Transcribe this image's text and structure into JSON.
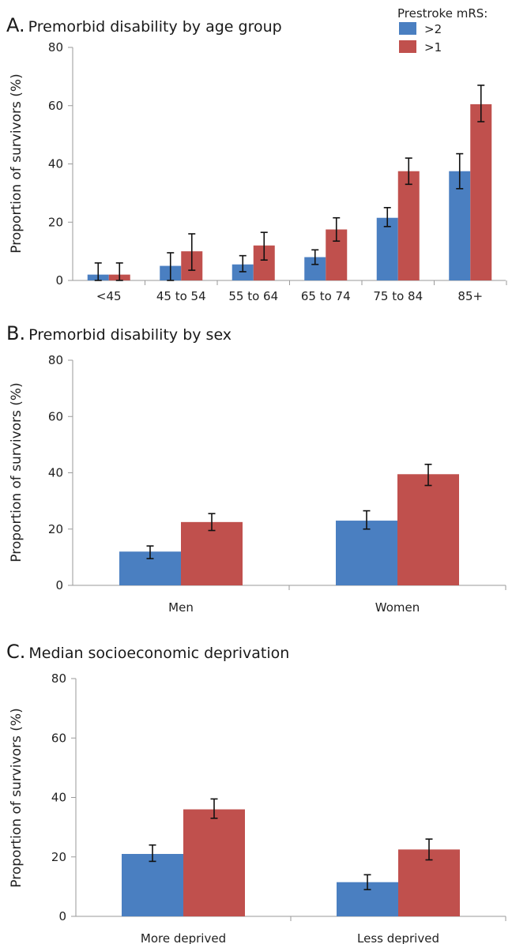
{
  "legend": {
    "title": "Prestroke mRS:",
    "items": [
      {
        "label": ">2",
        "color": "#4a7fc1"
      },
      {
        "label": ">1",
        "color": "#c0504d"
      }
    ]
  },
  "chart_data": [
    {
      "type": "bar",
      "panel_letter": "A.",
      "title": "Premorbid disability by age group",
      "ylabel": "Proportion of survivors (%)",
      "ylim": [
        0,
        80
      ],
      "yticks": [
        0,
        20,
        40,
        60,
        80
      ],
      "categories": [
        "<45",
        "45 to 54",
        "55 to 64",
        "65 to 74",
        "75 to 84",
        "85+"
      ],
      "series": [
        {
          "name": ">2",
          "color": "#4a7fc1",
          "values": [
            2,
            5,
            5.5,
            8,
            21.5,
            37.5
          ],
          "err_low": [
            0,
            0,
            3,
            5.5,
            18.5,
            31.5
          ],
          "err_high": [
            6,
            9.5,
            8.5,
            10.5,
            25,
            43.5
          ]
        },
        {
          "name": ">1",
          "color": "#c0504d",
          "values": [
            2,
            10,
            12,
            17.5,
            37.5,
            60.5
          ],
          "err_low": [
            0,
            3.5,
            7,
            13.5,
            33,
            54.5
          ],
          "err_high": [
            6,
            16,
            16.5,
            21.5,
            42,
            67
          ]
        }
      ],
      "grid": false
    },
    {
      "type": "bar",
      "panel_letter": "B.",
      "title": "Premorbid disability by sex",
      "ylabel": "Proportion of survivors (%)",
      "ylim": [
        0,
        80
      ],
      "yticks": [
        0,
        20,
        40,
        60,
        80
      ],
      "categories": [
        "Men",
        "Women"
      ],
      "series": [
        {
          "name": ">2",
          "color": "#4a7fc1",
          "values": [
            12,
            23
          ],
          "err_low": [
            9.5,
            20
          ],
          "err_high": [
            14,
            26.5
          ]
        },
        {
          "name": ">1",
          "color": "#c0504d",
          "values": [
            22.5,
            39.5
          ],
          "err_low": [
            19.5,
            35.5
          ],
          "err_high": [
            25.5,
            43
          ]
        }
      ],
      "grid": false
    },
    {
      "type": "bar",
      "panel_letter": "C.",
      "title": "Median socioeconomic deprivation",
      "ylabel": "Proportion of survivors (%)",
      "ylim": [
        0,
        80
      ],
      "yticks": [
        0,
        20,
        40,
        60,
        80
      ],
      "categories": [
        "More deprived",
        "Less deprived"
      ],
      "series": [
        {
          "name": ">2",
          "color": "#4a7fc1",
          "values": [
            21,
            11.5
          ],
          "err_low": [
            18.5,
            9
          ],
          "err_high": [
            24,
            14
          ]
        },
        {
          "name": ">1",
          "color": "#c0504d",
          "values": [
            36,
            22.5
          ],
          "err_low": [
            33,
            19
          ],
          "err_high": [
            39.5,
            26
          ]
        }
      ],
      "grid": false
    }
  ]
}
